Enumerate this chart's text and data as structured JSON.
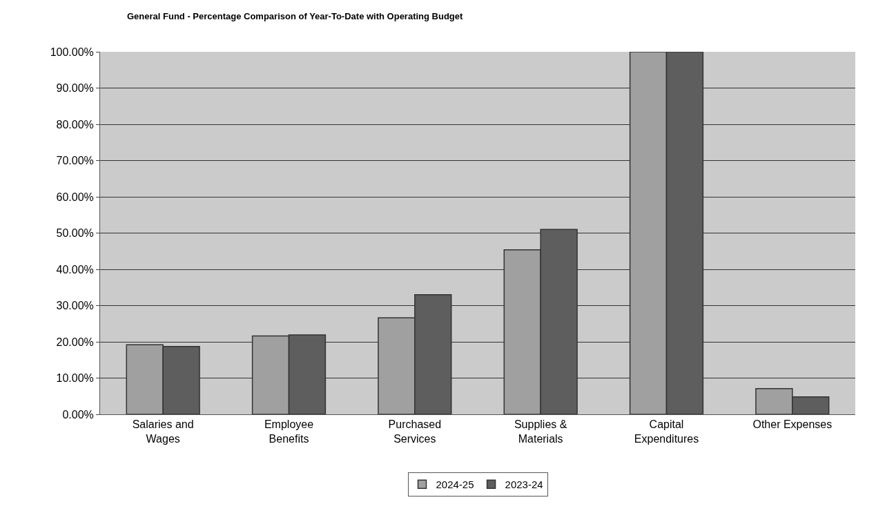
{
  "chart_data": {
    "type": "bar",
    "title": "General Fund - Percentage Comparison of Year-To-Date with Operating Budget",
    "categories": [
      "Salaries and\nWages",
      "Employee\nBenefits",
      "Purchased\nServices",
      "Supplies &\nMaterials",
      "Capital\nExpenditures",
      "Other Expenses"
    ],
    "series": [
      {
        "name": "2024-25",
        "color": "#a0a0a0",
        "values": [
          19.2,
          21.6,
          26.6,
          45.4,
          100,
          7.1
        ]
      },
      {
        "name": "2023-24",
        "color": "#5e5e5e",
        "values": [
          18.7,
          21.9,
          33.0,
          51.0,
          100,
          4.8
        ]
      }
    ],
    "ylim": [
      0,
      100
    ],
    "yticks": [
      {
        "value": 0,
        "label": "0.00%"
      },
      {
        "value": 10,
        "label": "10.00%"
      },
      {
        "value": 20,
        "label": "20.00%"
      },
      {
        "value": 30,
        "label": "30.00%"
      },
      {
        "value": 40,
        "label": "40.00%"
      },
      {
        "value": 50,
        "label": "50.00%"
      },
      {
        "value": 60,
        "label": "60.00%"
      },
      {
        "value": 70,
        "label": "70.00%"
      },
      {
        "value": 80,
        "label": "80.00%"
      },
      {
        "value": 90,
        "label": "90.00%"
      },
      {
        "value": 100,
        "label": "100.00%"
      }
    ],
    "grid": "y",
    "legend": "bottom"
  }
}
